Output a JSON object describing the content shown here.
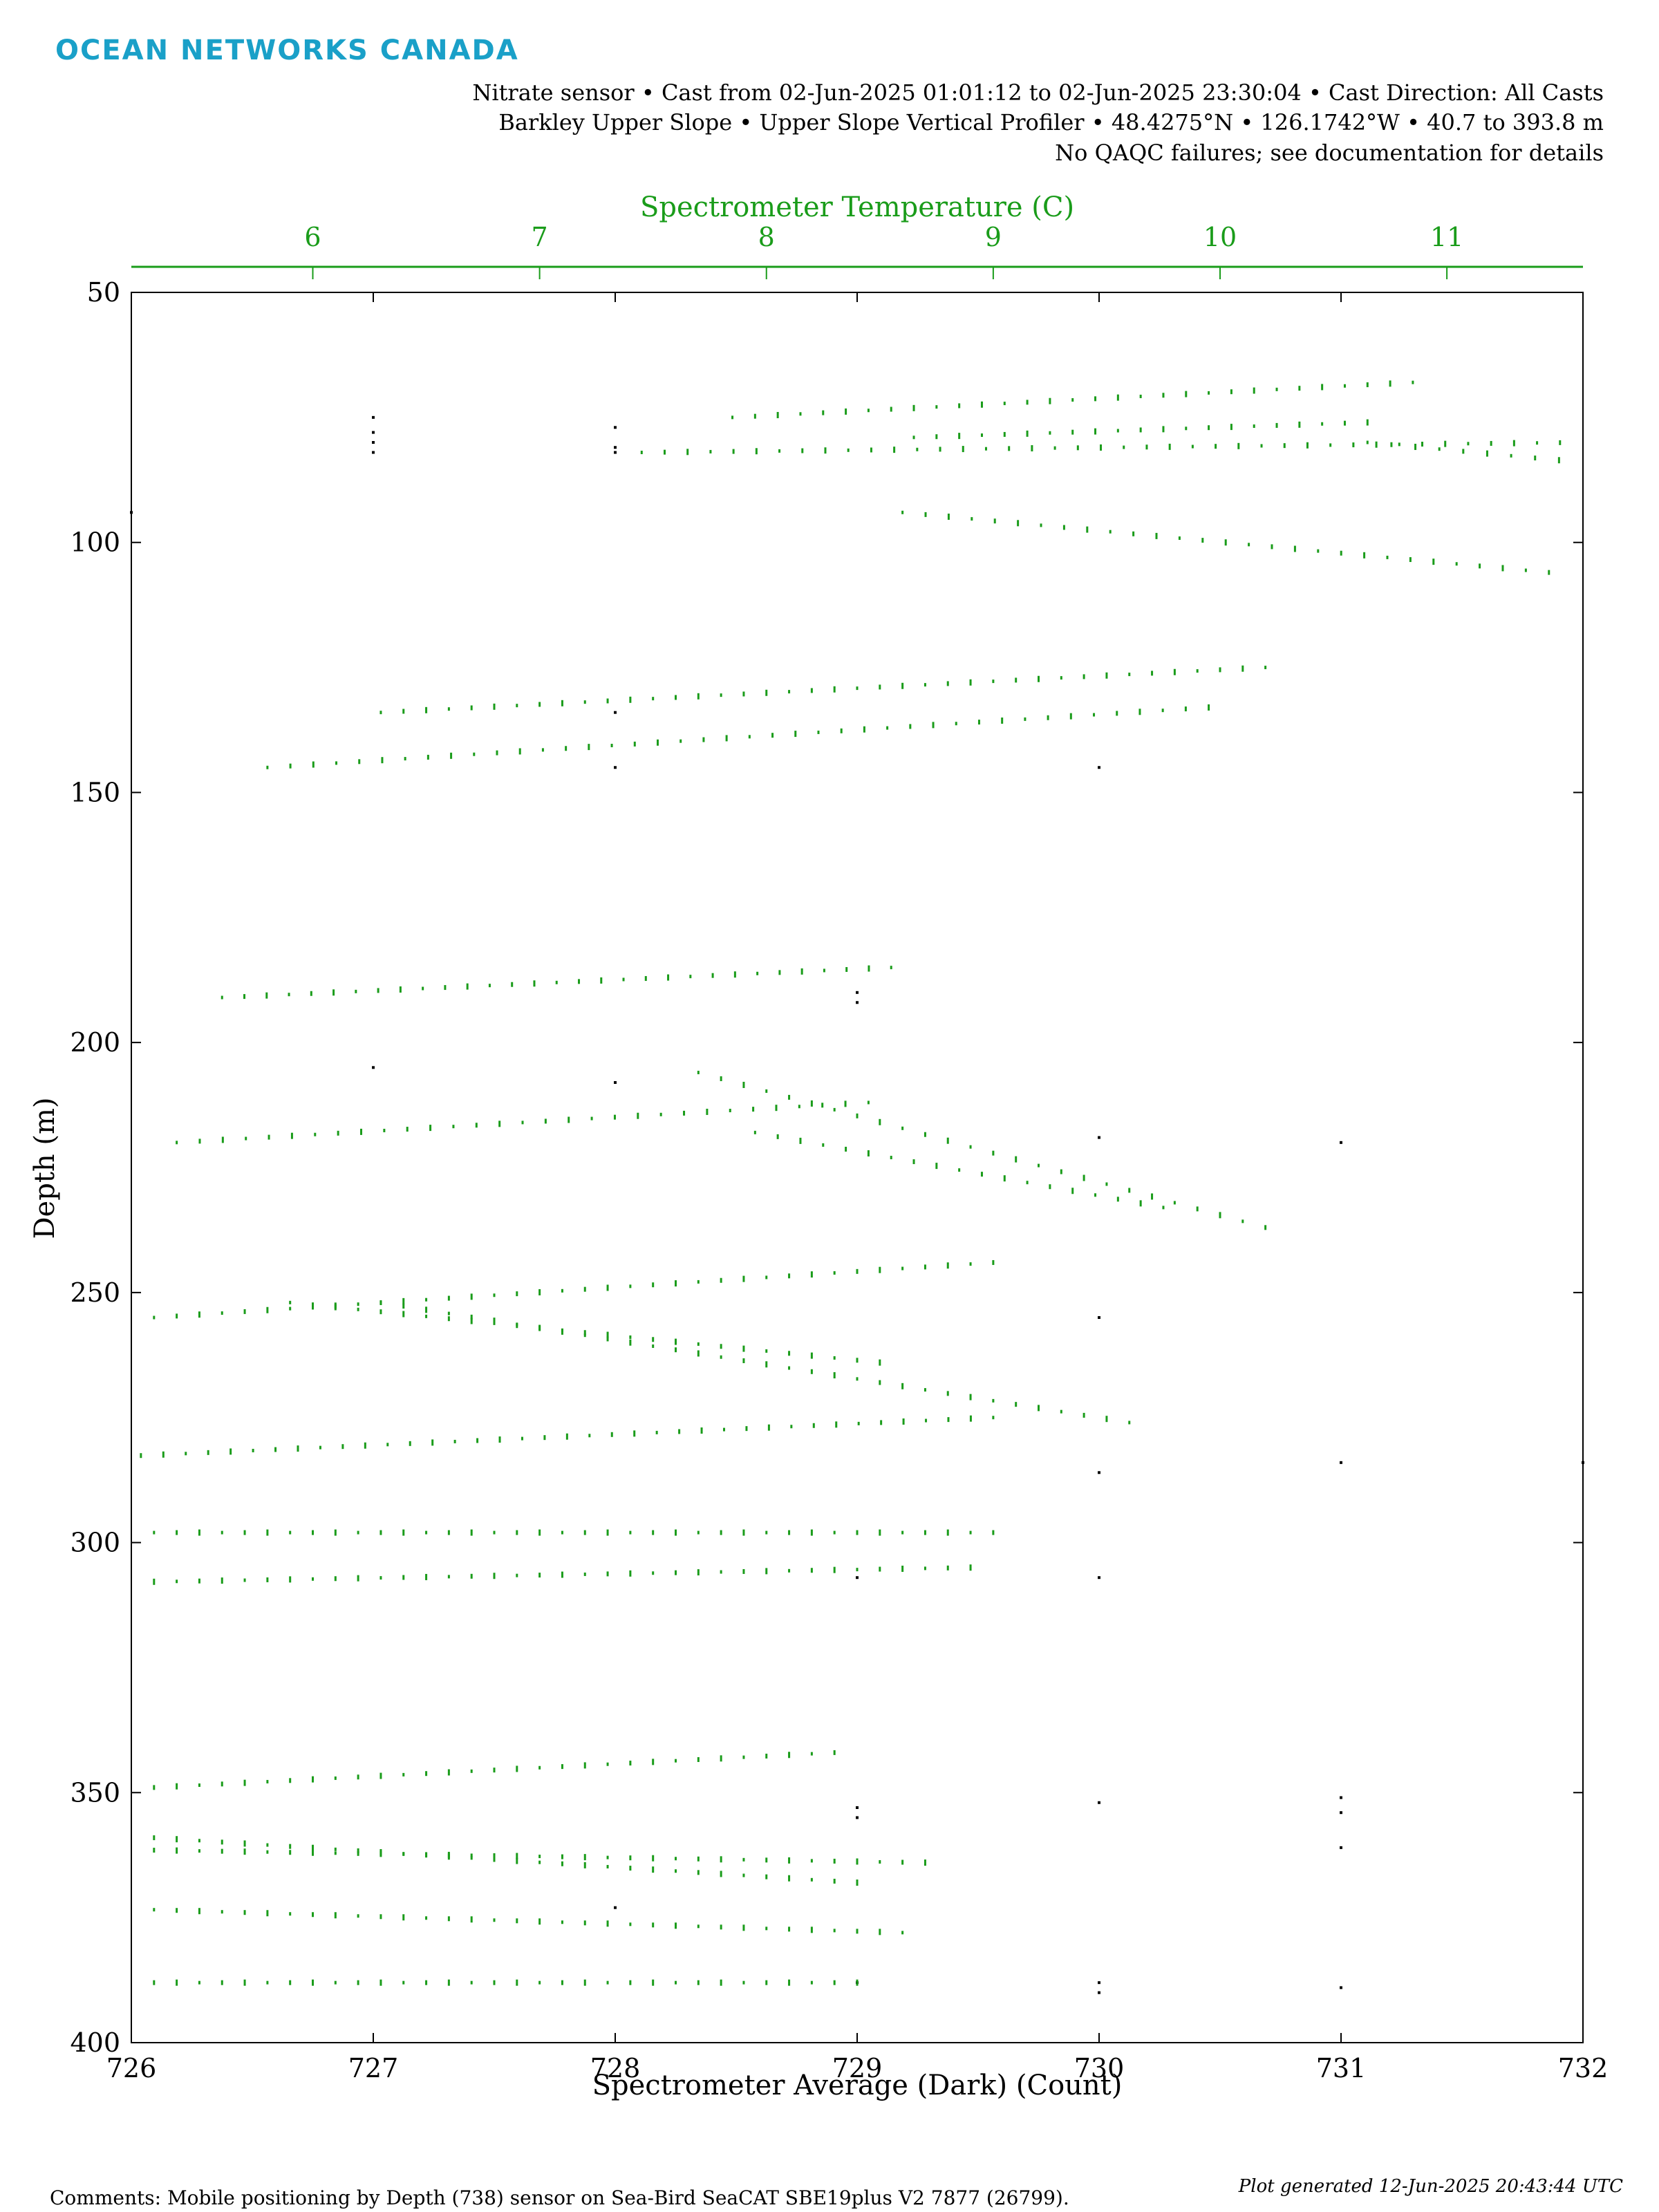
{
  "logo_text": "OCEAN NETWORKS CANADA",
  "header": {
    "line1": "Nitrate sensor • Cast from 02-Jun-2025 01:01:12 to 02-Jun-2025 23:30:04 • Cast Direction: All Casts",
    "line2": "Barkley Upper Slope • Upper Slope Vertical Profiler • 48.4275°N • 126.1742°W • 40.7 to 393.8 m",
    "line3": "No QAQC failures; see documentation for details"
  },
  "footer": {
    "comments": "Comments: Mobile positioning by Depth (738) sensor on Sea-Bird SeaCAT SBE19plus V2 7877 (26799).",
    "generated": "Plot generated 12-Jun-2025 20:43:44 UTC"
  },
  "colors": {
    "series": "#1a9c1a",
    "axis_top": "#1a9c1a",
    "nitrate_points": "#000000",
    "logo": "#1aa0c8"
  },
  "chart_data": {
    "type": "scatter",
    "xlabel": "Spectrometer Average (Dark) (Count)",
    "ylabel": "Depth (m)",
    "top_xlabel": "Spectrometer Temperature (C)",
    "xlim": [
      726,
      732
    ],
    "ylim": [
      400,
      50
    ],
    "top_xlim": [
      5.2,
      11.6
    ],
    "x_ticks": [
      "726",
      "727",
      "728",
      "729",
      "730",
      "731",
      "732"
    ],
    "y_ticks": [
      "50",
      "100",
      "150",
      "200",
      "250",
      "300",
      "350",
      "400"
    ],
    "top_ticks": [
      "6",
      "7",
      "8",
      "9",
      "10",
      "11"
    ],
    "grid": false,
    "series": [
      {
        "color": "#000000",
        "axis": "bottom",
        "points": [
          [
            727,
            75
          ],
          [
            727,
            78
          ],
          [
            727,
            80
          ],
          [
            727,
            82
          ],
          [
            728,
            77
          ],
          [
            728,
            81
          ],
          [
            728,
            82
          ],
          [
            728,
            134
          ],
          [
            728,
            145
          ],
          [
            730,
            145
          ],
          [
            729,
            190
          ],
          [
            729,
            192
          ],
          [
            727,
            205
          ],
          [
            728,
            208
          ],
          [
            730,
            219
          ],
          [
            731,
            220
          ],
          [
            730,
            255
          ],
          [
            731,
            284
          ],
          [
            730,
            286
          ],
          [
            729,
            353
          ],
          [
            729,
            355
          ],
          [
            730,
            352
          ],
          [
            731,
            351
          ],
          [
            731,
            354
          ],
          [
            731,
            361
          ],
          [
            728,
            373
          ],
          [
            729,
            388
          ],
          [
            730,
            388
          ],
          [
            730,
            390
          ],
          [
            731,
            389
          ],
          [
            726,
            94
          ],
          [
            732,
            284
          ],
          [
            729,
            307
          ],
          [
            730,
            307
          ]
        ]
      },
      {
        "color": "#1a9c1a",
        "axis": "top",
        "segments": [
          {
            "t": [
              7.85,
              10.85
            ],
            "d": [
              75,
              68
            ]
          },
          {
            "t": [
              7.45,
              11.6
            ],
            "d": [
              82,
              80
            ]
          },
          {
            "t": [
              8.65,
              10.65
            ],
            "d": [
              79,
              76
            ]
          },
          {
            "t": [
              10.65,
              11.6
            ],
            "d": [
              80,
              84
            ]
          },
          {
            "t": [
              8.6,
              11.45
            ],
            "d": [
              94,
              106
            ]
          },
          {
            "t": [
              6.3,
              10.2
            ],
            "d": [
              134,
              125
            ]
          },
          {
            "t": [
              5.8,
              9.95
            ],
            "d": [
              145,
              133
            ]
          },
          {
            "t": [
              5.6,
              8.55
            ],
            "d": [
              191,
              185
            ]
          },
          {
            "t": [
              5.4,
              8.45
            ],
            "d": [
              220,
              212
            ]
          },
          {
            "t": [
              7.7,
              10.2
            ],
            "d": [
              206,
              237
            ]
          },
          {
            "t": [
              7.95,
              9.75
            ],
            "d": [
              218,
              233
            ]
          },
          {
            "t": [
              5.3,
              9.0
            ],
            "d": [
              255,
              244
            ]
          },
          {
            "t": [
              6.3,
              9.6
            ],
            "d": [
              252,
              276
            ]
          },
          {
            "t": [
              5.9,
              8.5
            ],
            "d": [
              252,
              264
            ]
          },
          {
            "t": [
              4.55,
              9.0
            ],
            "d": [
              284,
              275
            ]
          },
          {
            "t": [
              5.3,
              9.0
            ],
            "d": [
              298,
              298
            ]
          },
          {
            "t": [
              5.1,
              8.9
            ],
            "d": [
              308,
              305
            ]
          },
          {
            "t": [
              4.0,
              8.3
            ],
            "d": [
              352,
              342
            ]
          },
          {
            "t": [
              4.6,
              8.4
            ],
            "d": [
              357,
              368
            ]
          },
          {
            "t": [
              4.6,
              8.7
            ],
            "d": [
              361,
              364
            ]
          },
          {
            "t": [
              5.0,
              8.6
            ],
            "d": [
              373,
              378
            ]
          },
          {
            "t": [
              4.0,
              8.4
            ],
            "d": [
              388,
              388
            ]
          }
        ]
      }
    ]
  }
}
